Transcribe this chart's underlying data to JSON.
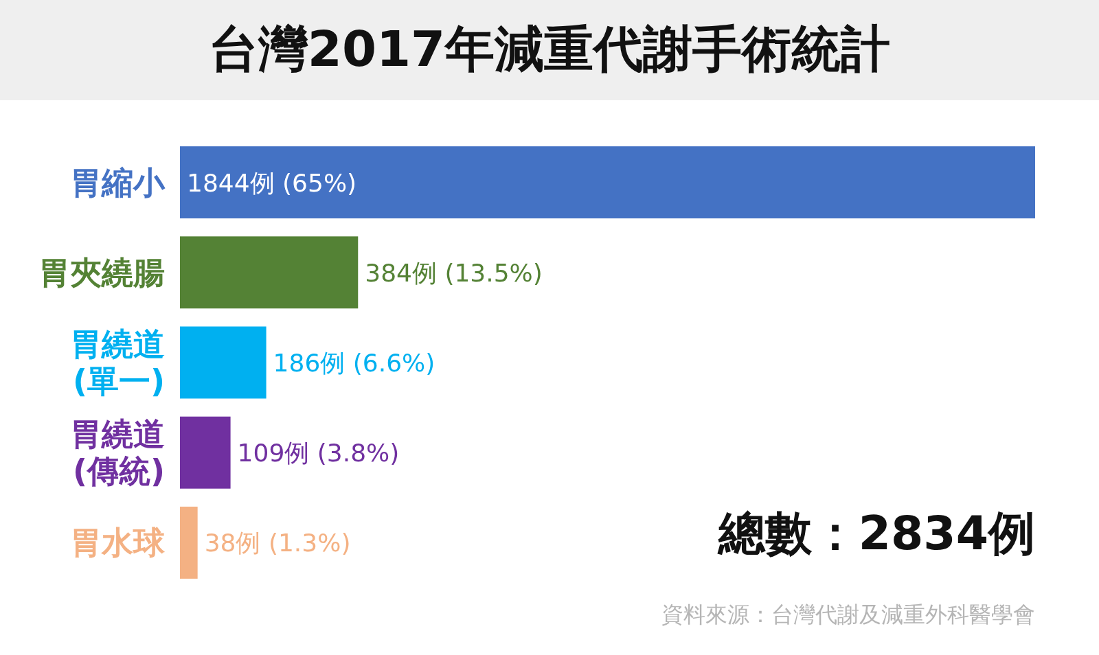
{
  "chart_data": {
    "type": "bar",
    "orientation": "horizontal",
    "title": "台灣2017年減重代謝手術統計",
    "categories": [
      "胃縮小",
      "胃夾繞腸",
      "胃繞道\n(單一)",
      "胃繞道\n(傳統)",
      "胃水球"
    ],
    "values": [
      1844,
      384,
      186,
      109,
      38
    ],
    "colors": [
      "#4472c4",
      "#548235",
      "#00b0f0",
      "#7030a0",
      "#f4b183"
    ],
    "value_labels": [
      "1844例 (65%)",
      "384例 (13.5%)",
      "186例 (6.6%)",
      "109例 (3.8%)",
      "38例 (1.3%)"
    ],
    "annotations": [
      "總數：2834例",
      "資料來源：台灣代謝及減重外科醫學會"
    ]
  }
}
